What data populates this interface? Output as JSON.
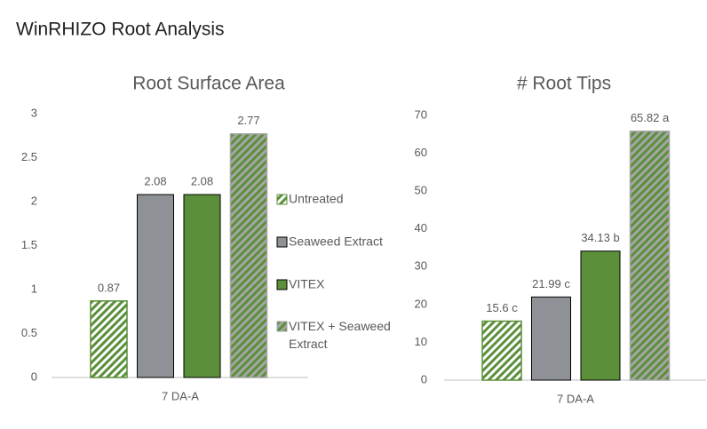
{
  "title": "WinRHIZO Root Analysis",
  "chart_data": [
    {
      "type": "bar",
      "title": "Root Surface Area",
      "categories": [
        "7 DA-A"
      ],
      "ylim": [
        0,
        3
      ],
      "yticks": [
        0,
        0.5,
        1,
        1.5,
        2,
        2.5,
        3
      ],
      "grid": false,
      "legend": "right",
      "series": [
        {
          "name": "Untreated",
          "color": "#ffffff",
          "hatch_color": "#5b8f3a",
          "values": [
            0.87
          ]
        },
        {
          "name": "Seaweed Extract",
          "color": "#8e9195",
          "values": [
            2.08
          ]
        },
        {
          "name": "VITEX",
          "color": "#5b8f3a",
          "values": [
            2.08
          ]
        },
        {
          "name": "VITEX + Seaweed Extract",
          "color": "#5b8f3a",
          "hatch_color": "#a5a5a5",
          "values": [
            2.77
          ]
        }
      ]
    },
    {
      "type": "bar",
      "title": "# Root Tips",
      "categories": [
        "7 DA-A"
      ],
      "ylim": [
        0,
        70
      ],
      "yticks": [
        0,
        10,
        20,
        30,
        40,
        50,
        60,
        70
      ],
      "grid": false,
      "series": [
        {
          "color": "#ffffff",
          "hatch_color": "#5b8f3a",
          "values": [
            15.6
          ],
          "value_labels": [
            "15.6 c"
          ]
        },
        {
          "color": "#8e9195",
          "values": [
            21.99
          ],
          "value_labels": [
            "21.99 c"
          ]
        },
        {
          "color": "#5b8f3a",
          "values": [
            34.13
          ],
          "value_labels": [
            "34.13 b"
          ]
        },
        {
          "color": "#5b8f3a",
          "hatch_color": "#a5a5a5",
          "values": [
            65.82
          ],
          "value_labels": [
            "65.82 a"
          ]
        }
      ]
    }
  ]
}
